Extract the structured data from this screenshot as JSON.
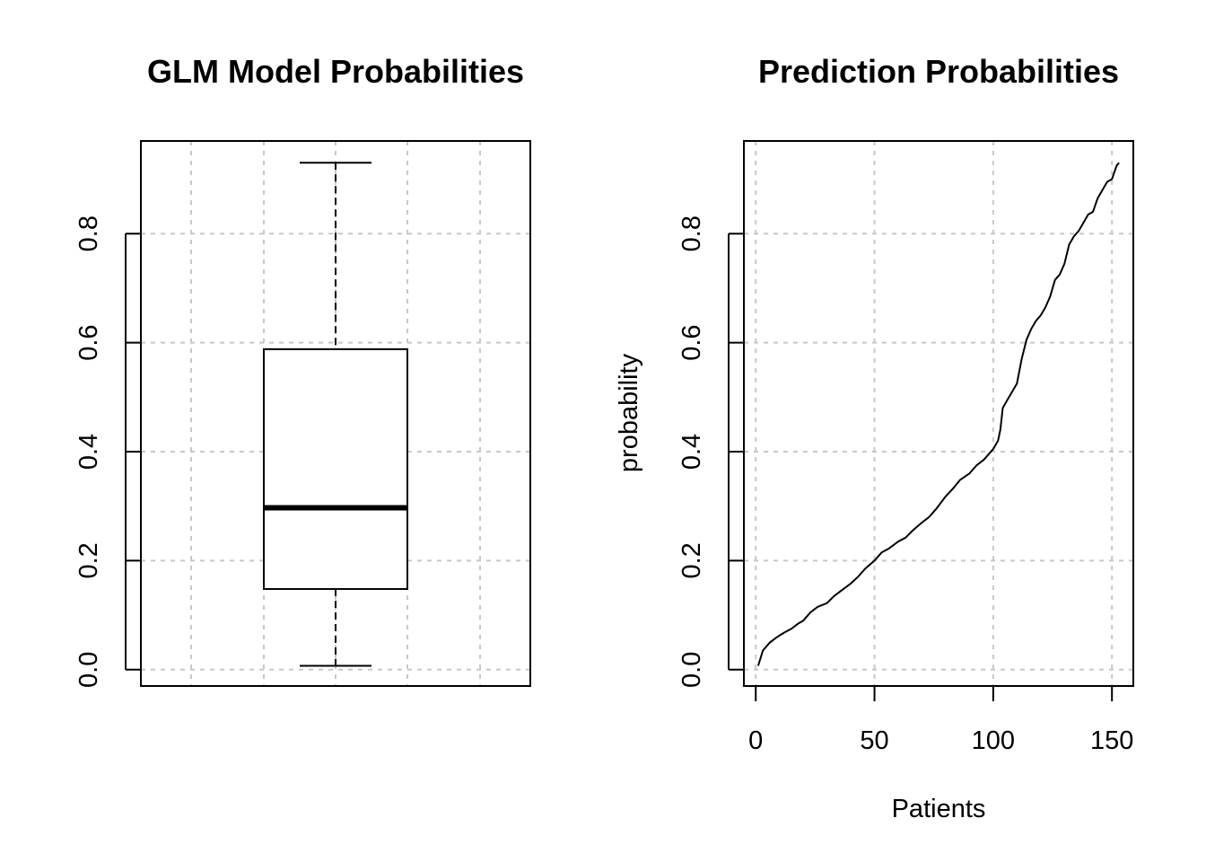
{
  "chart_data": [
    {
      "type": "box",
      "title": "GLM Model Probabilities",
      "xlabel": "",
      "ylabel": "",
      "ylim": [
        -0.03,
        0.97
      ],
      "yticks": [
        "0.0",
        "0.2",
        "0.4",
        "0.6",
        "0.8"
      ],
      "grid": true,
      "box": {
        "min": 0.007,
        "q1": 0.148,
        "median": 0.297,
        "q3": 0.588,
        "max": 0.93
      }
    },
    {
      "type": "line",
      "title": "Prediction Probabilities",
      "xlabel": "Patients",
      "ylabel": "probability",
      "xlim": [
        -5,
        159
      ],
      "ylim": [
        -0.03,
        0.97
      ],
      "xticks": [
        "0",
        "50",
        "100",
        "150"
      ],
      "yticks": [
        "0.0",
        "0.2",
        "0.4",
        "0.6",
        "0.8"
      ],
      "grid": true,
      "series": [
        {
          "x": [
            1,
            3,
            6,
            9,
            12,
            15,
            18,
            20,
            23,
            26,
            30,
            33,
            36,
            40,
            43,
            46,
            50,
            53,
            56,
            60,
            63,
            66,
            70,
            73,
            76,
            80,
            83,
            86,
            90,
            93,
            96,
            100,
            102,
            103,
            104,
            106,
            108,
            110,
            112,
            114,
            116,
            118,
            120,
            122,
            124,
            126,
            128,
            130,
            132,
            134,
            136,
            138,
            140,
            142,
            144,
            146,
            148,
            150,
            152,
            153
          ],
          "y": [
            0.007,
            0.035,
            0.05,
            0.06,
            0.068,
            0.075,
            0.085,
            0.09,
            0.105,
            0.115,
            0.122,
            0.135,
            0.145,
            0.158,
            0.17,
            0.185,
            0.2,
            0.215,
            0.222,
            0.235,
            0.242,
            0.255,
            0.27,
            0.28,
            0.295,
            0.318,
            0.332,
            0.348,
            0.36,
            0.375,
            0.385,
            0.405,
            0.42,
            0.44,
            0.48,
            0.495,
            0.51,
            0.525,
            0.57,
            0.605,
            0.625,
            0.64,
            0.65,
            0.665,
            0.685,
            0.715,
            0.725,
            0.745,
            0.78,
            0.795,
            0.805,
            0.82,
            0.835,
            0.84,
            0.865,
            0.88,
            0.895,
            0.9,
            0.925,
            0.93
          ]
        }
      ]
    }
  ]
}
